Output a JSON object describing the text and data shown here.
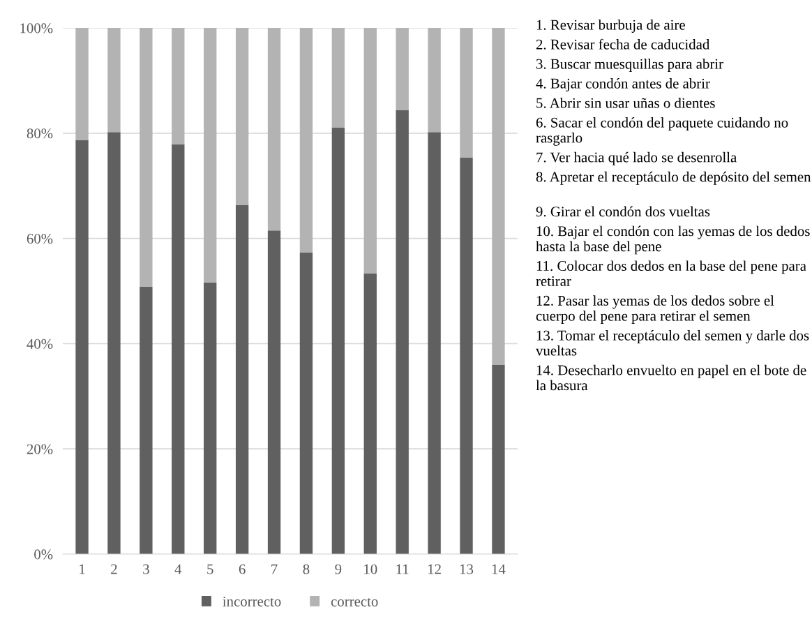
{
  "chart_data": {
    "type": "bar",
    "stacked": true,
    "categories": [
      "1",
      "2",
      "3",
      "4",
      "5",
      "6",
      "7",
      "8",
      "9",
      "10",
      "11",
      "12",
      "13",
      "14"
    ],
    "series": [
      {
        "name": "incorrecto",
        "color": "#606060",
        "values": [
          78.7,
          80.2,
          50.8,
          77.9,
          51.6,
          66.3,
          61.5,
          57.3,
          81.1,
          53.3,
          84.4,
          80.2,
          75.4,
          36.0
        ]
      },
      {
        "name": "correcto",
        "color": "#b3b3b3",
        "values": [
          21.3,
          19.8,
          49.2,
          22.1,
          48.4,
          33.7,
          38.5,
          42.7,
          18.9,
          46.7,
          15.6,
          19.8,
          24.6,
          64.0
        ]
      }
    ],
    "ylim": [
      0,
      100
    ],
    "yticks": [
      {
        "value": 0,
        "label": "0%"
      },
      {
        "value": 20,
        "label": "20%"
      },
      {
        "value": 40,
        "label": "40%"
      },
      {
        "value": 60,
        "label": "60%"
      },
      {
        "value": 80,
        "label": "80%"
      },
      {
        "value": 100,
        "label": "100%"
      }
    ],
    "grid": "y",
    "legend": "bottom",
    "annotations": [
      "1. Revisar burbuja de aire",
      "2. Revisar fecha de caducidad",
      "3. Buscar muesquillas para abrir",
      "4. Bajar condón antes de abrir",
      "5. Abrir sin usar uñas o dientes",
      "6. Sacar el condón del paquete cuidando no rasgarlo",
      "7. Ver hacia qué lado se desenrolla",
      "8. Apretar el receptáculo de depósito del semen",
      "9. Girar el condón dos vueltas",
      "10. Bajar el condón con las yemas de los dedos hasta la base del pene",
      "11. Colocar dos dedos en la base del pene para retirar",
      "12. Pasar las yemas de los dedos sobre el cuerpo del pene para retirar el semen",
      "13. Tomar el receptáculo del semen y darle dos vueltas",
      "14. Desecharlo envuelto en papel en el bote de la basura"
    ]
  }
}
